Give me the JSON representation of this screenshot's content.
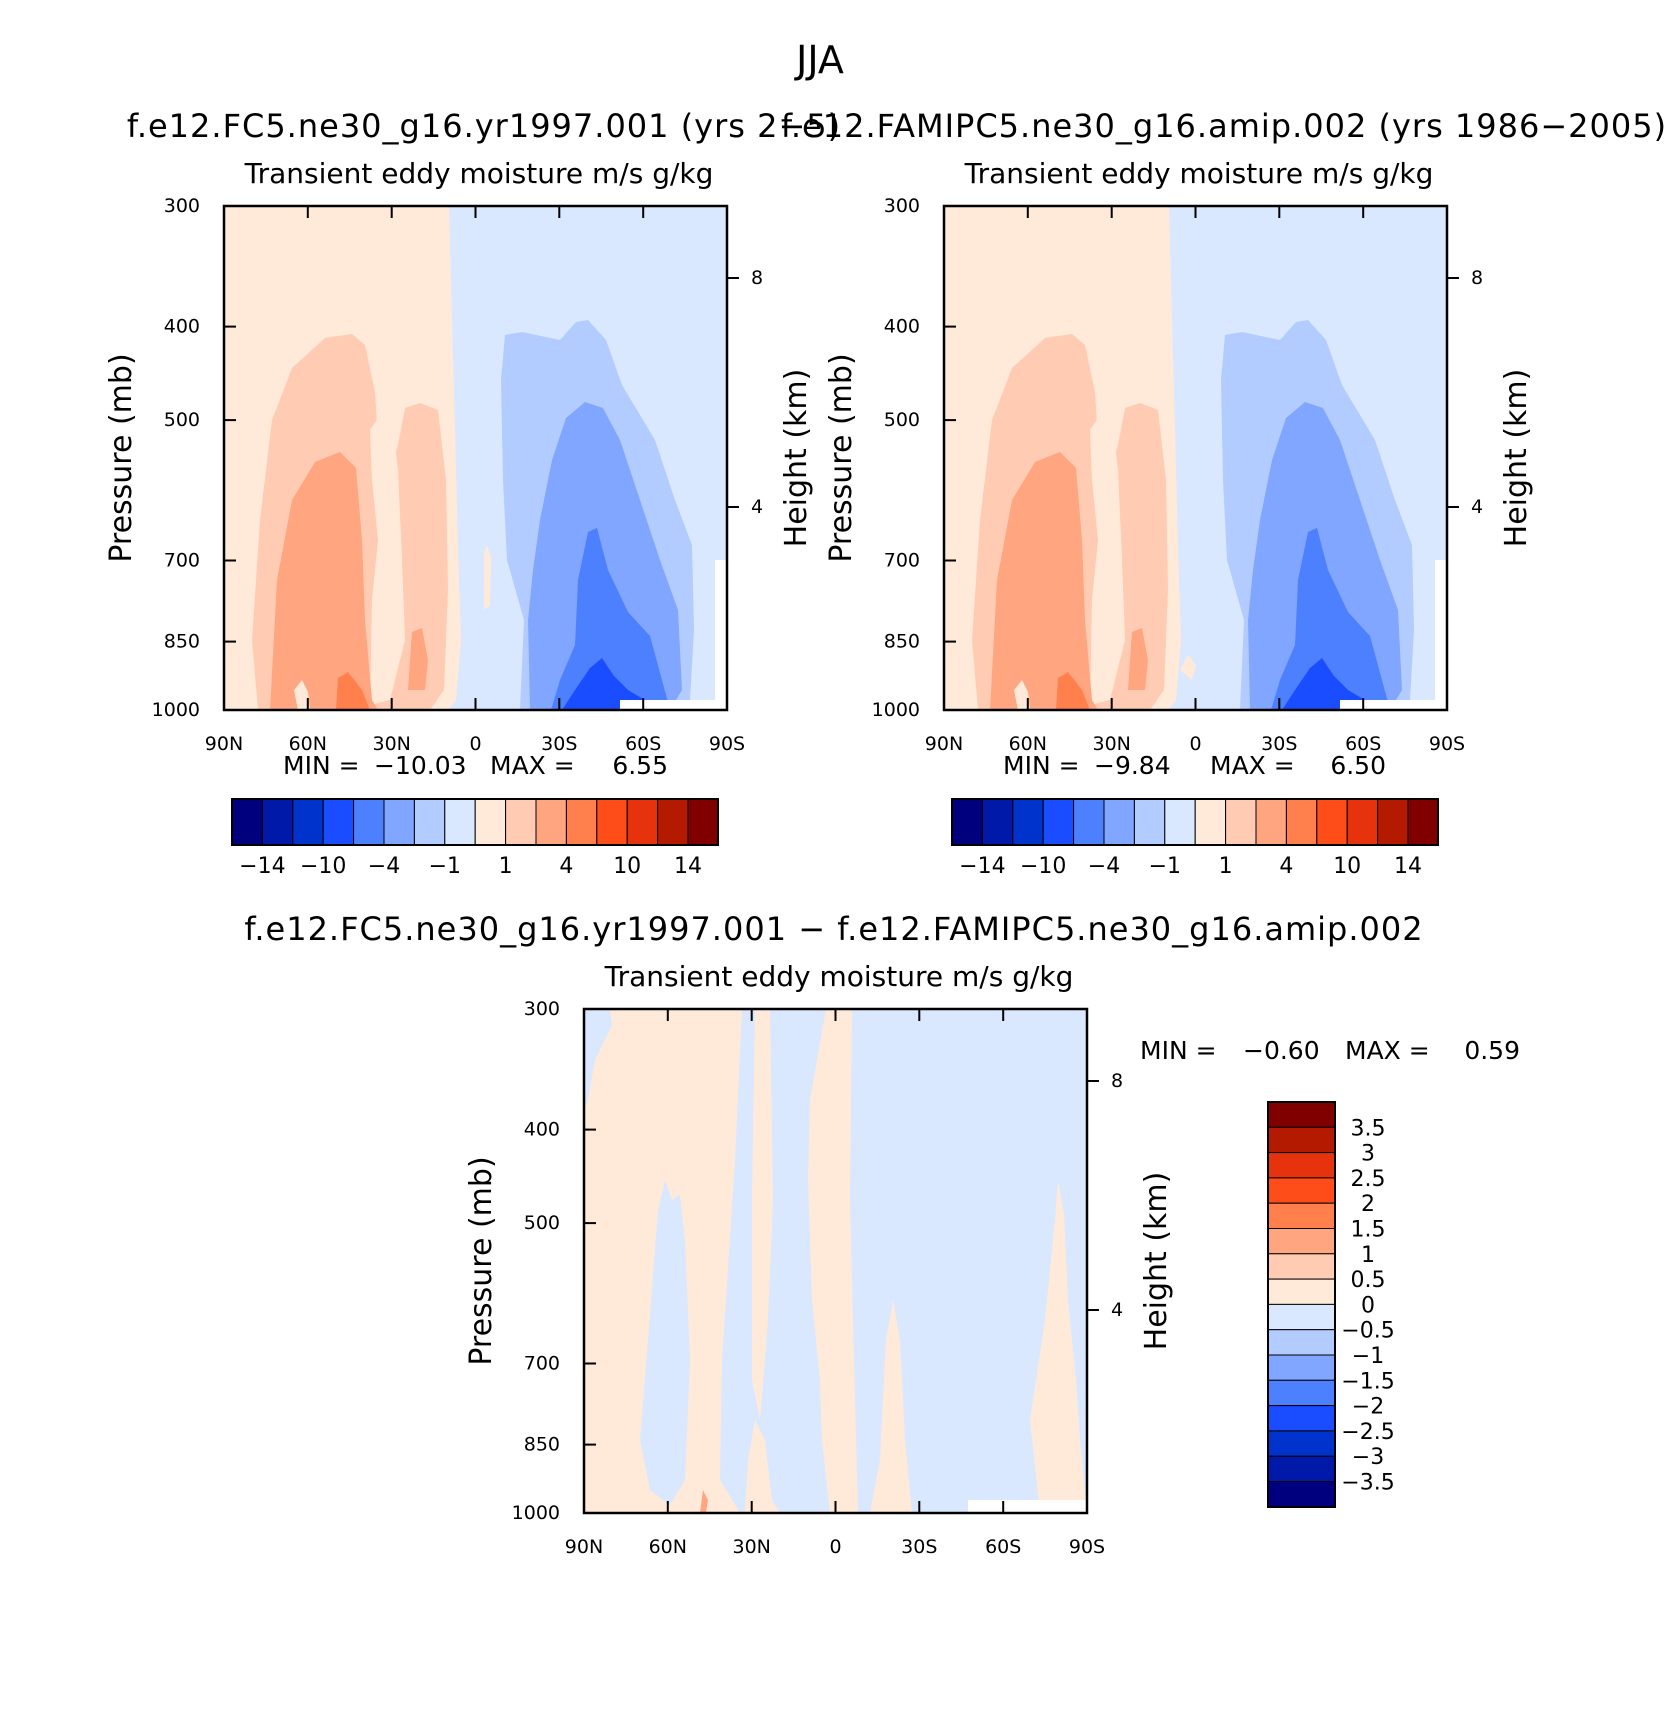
{
  "figure": {
    "title": "JJA"
  },
  "colors": {
    "scale": [
      "#00007f",
      "#0019a8",
      "#0033cc",
      "#1a4dff",
      "#4d80ff",
      "#80a6ff",
      "#b3ccff",
      "#d9e8ff",
      "#ffead9",
      "#ffccb3",
      "#ffa680",
      "#ff804d",
      "#ff4d1a",
      "#e6330d",
      "#b31a00",
      "#800000"
    ]
  },
  "chart_data": [
    {
      "type": "heatmap",
      "panel_title": "f.e12.FC5.ne30_g16.yr1997.001 (yrs 2−5)",
      "subtitle": "Transient eddy moisture m/s g/kg",
      "xlabel": "",
      "ylabel": "Pressure (mb)",
      "y2label": "Height (km)",
      "x_ticks": [
        "90N",
        "60N",
        "30N",
        "0",
        "30S",
        "60S",
        "90S"
      ],
      "x_values": [
        90,
        60,
        30,
        0,
        -30,
        -60,
        -90
      ],
      "y_ticks": [
        "300",
        "400",
        "500",
        "700",
        "850",
        "1000"
      ],
      "y_values": [
        300,
        400,
        500,
        700,
        850,
        1000
      ],
      "y2_ticks": [
        "8",
        "4"
      ],
      "y2_values": [
        8,
        4
      ],
      "min_label": "MIN =",
      "min": "−10.03",
      "max_label": "MAX =",
      "max": "6.55",
      "levels": [
        -14,
        -12,
        -10,
        -8,
        -4,
        -2,
        -1,
        0,
        1,
        2,
        4,
        8,
        10,
        12,
        14
      ],
      "colorbar_labels": [
        "−14",
        "−10",
        "−4",
        "−1",
        "1",
        "4",
        "10",
        "14"
      ]
    },
    {
      "type": "heatmap",
      "panel_title": "f.e12.FAMIPC5.ne30_g16.amip.002 (yrs 1986−2005)",
      "subtitle": "Transient eddy moisture m/s g/kg",
      "xlabel": "",
      "ylabel": "Pressure (mb)",
      "y2label": "Height (km)",
      "x_ticks": [
        "90N",
        "60N",
        "30N",
        "0",
        "30S",
        "60S",
        "90S"
      ],
      "x_values": [
        90,
        60,
        30,
        0,
        -30,
        -60,
        -90
      ],
      "y_ticks": [
        "300",
        "400",
        "500",
        "700",
        "850",
        "1000"
      ],
      "y_values": [
        300,
        400,
        500,
        700,
        850,
        1000
      ],
      "y2_ticks": [
        "8",
        "4"
      ],
      "y2_values": [
        8,
        4
      ],
      "min_label": "MIN =",
      "min": "−9.84",
      "max_label": "MAX =",
      "max": "6.50",
      "levels": [
        -14,
        -12,
        -10,
        -8,
        -4,
        -2,
        -1,
        0,
        1,
        2,
        4,
        8,
        10,
        12,
        14
      ],
      "colorbar_labels": [
        "−14",
        "−10",
        "−4",
        "−1",
        "1",
        "4",
        "10",
        "14"
      ]
    },
    {
      "type": "heatmap",
      "panel_title": "f.e12.FC5.ne30_g16.yr1997.001 − f.e12.FAMIPC5.ne30_g16.amip.002",
      "subtitle": "Transient eddy moisture m/s g/kg",
      "xlabel": "",
      "ylabel": "Pressure (mb)",
      "y2label": "Height (km)",
      "x_ticks": [
        "90N",
        "60N",
        "30N",
        "0",
        "30S",
        "60S",
        "90S"
      ],
      "x_values": [
        90,
        60,
        30,
        0,
        -30,
        -60,
        -90
      ],
      "y_ticks": [
        "300",
        "400",
        "500",
        "700",
        "850",
        "1000"
      ],
      "y_values": [
        300,
        400,
        500,
        700,
        850,
        1000
      ],
      "y2_ticks": [
        "8",
        "4"
      ],
      "y2_values": [
        8,
        4
      ],
      "min_label": "MIN =",
      "min": "−0.60",
      "max_label": "MAX =",
      "max": "0.59",
      "levels": [
        -3.5,
        -3,
        -2.5,
        -2,
        -1.5,
        -1,
        -0.5,
        0,
        0.5,
        1,
        1.5,
        2,
        2.5,
        3,
        3.5
      ],
      "colorbar_labels": [
        "3.5",
        "3",
        "2.5",
        "2",
        "1.5",
        "1",
        "0.5",
        "0",
        "−0.5",
        "−1",
        "−1.5",
        "−2",
        "−2.5",
        "−3",
        "−3.5"
      ]
    }
  ]
}
